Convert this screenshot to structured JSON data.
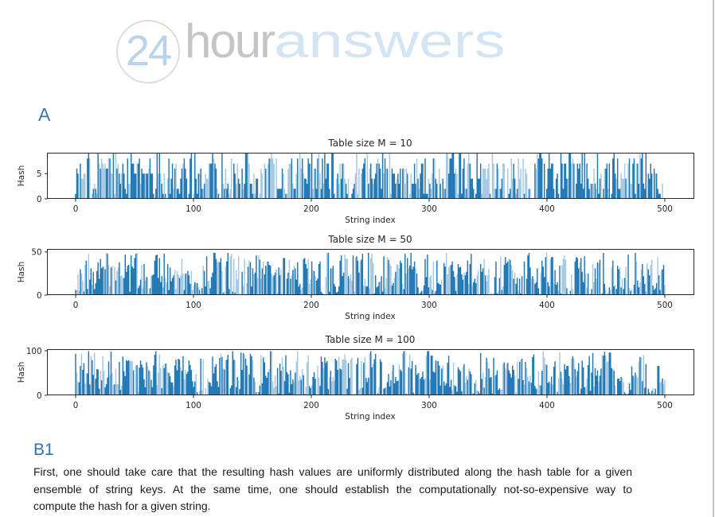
{
  "page": {
    "background": "#ffffff",
    "right_edge_color": "#c3c3c3"
  },
  "logo": {
    "circle_text": "24",
    "word1": "hour",
    "word2": "answers",
    "circle_border_color": "#dcdcdc",
    "number_color": "#b8d4ec",
    "word1_color": "#c5c5c5",
    "word2_color": "#d3e5f4"
  },
  "sections": {
    "a_label": "A",
    "a_color": "#3e76ab",
    "b_label": "B1",
    "b_color": "#2e74b5"
  },
  "paragraph": {
    "lines": [
      "First, one should take care that the resulting hash values are uniformly distributed along the hash table for a given",
      "ensemble of string keys. At the same time, one should establish the computationally not-so-expensive way to",
      "compute the hash for a given string."
    ]
  },
  "chart_data": [
    {
      "type": "bar",
      "title": "Table size M = 10",
      "xlabel": "String index",
      "ylabel": "Hash",
      "x_ticks": [
        0,
        100,
        200,
        300,
        400,
        500
      ],
      "y_ticks": [
        0,
        5
      ],
      "n_points": 500,
      "x_range": [
        0,
        500
      ],
      "value_range": [
        0,
        9
      ],
      "ylim": [
        0,
        9.15
      ],
      "distribution": "uniform-random integer hash values per string index",
      "bar_color_dark": "#1f77b4",
      "bar_color_light": "#a6c9e2",
      "seed": 101
    },
    {
      "type": "bar",
      "title": "Table size M = 50",
      "xlabel": "String index",
      "ylabel": "Hash",
      "x_ticks": [
        0,
        100,
        200,
        300,
        400,
        500
      ],
      "y_ticks": [
        0,
        50
      ],
      "n_points": 500,
      "x_range": [
        0,
        500
      ],
      "value_range": [
        0,
        49
      ],
      "ylim": [
        0,
        53.5
      ],
      "distribution": "uniform-random integer hash values per string index",
      "bar_color_dark": "#1f77b4",
      "bar_color_light": "#a6c9e2",
      "seed": 202
    },
    {
      "type": "bar",
      "title": "Table size M = 100",
      "xlabel": "String index",
      "ylabel": "Hash",
      "x_ticks": [
        0,
        100,
        200,
        300,
        400,
        500
      ],
      "y_ticks": [
        0,
        100
      ],
      "n_points": 500,
      "x_range": [
        0,
        500
      ],
      "value_range": [
        0,
        99
      ],
      "ylim": [
        0,
        103.5
      ],
      "distribution": "uniform-random integer hash values per string index",
      "bar_color_dark": "#1f77b4",
      "bar_color_light": "#a6c9e2",
      "seed": 303
    }
  ]
}
